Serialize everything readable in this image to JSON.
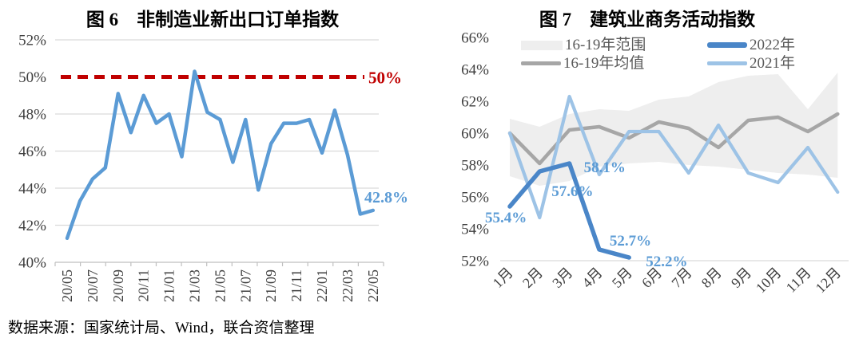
{
  "page": {
    "source_note": "数据来源：国家统计局、Wind，联合资信整理"
  },
  "colors": {
    "red": "#c00000",
    "blue": "#5b9bd5",
    "label_blue": "#5b9bd5",
    "dark_blue": "#4a86c8",
    "light_blue": "#9dc3e6",
    "gray": "#a6a6a6",
    "band": "#eeeeee",
    "grid": "#d9d9d9",
    "axis": "#bfbfbf",
    "axis_text": "#3f3f3f"
  },
  "chart_data": [
    {
      "type": "line",
      "title": "图 6　非制造业新出口订单指数",
      "ylim": [
        40,
        52
      ],
      "ytick_step": 2,
      "yticks": [
        "40%",
        "42%",
        "44%",
        "46%",
        "48%",
        "50%",
        "52%"
      ],
      "x_tick_labels": [
        "20/05",
        "20/07",
        "20/09",
        "20/11",
        "21/01",
        "21/03",
        "21/05",
        "21/07",
        "21/09",
        "21/11",
        "22/01",
        "22/03",
        "22/05"
      ],
      "x_frequency": "monthly, labels every 2 months",
      "grid": true,
      "series": [
        {
          "name": "非制造业新出口订单指数",
          "color_key": "blue",
          "values": [
            41.3,
            43.3,
            44.5,
            45.1,
            49.1,
            47.0,
            49.0,
            47.5,
            48.0,
            45.7,
            50.3,
            48.1,
            47.7,
            45.4,
            47.7,
            43.9,
            46.4,
            47.5,
            47.5,
            47.7,
            45.9,
            48.2,
            45.8,
            42.6,
            42.8
          ]
        }
      ],
      "reference_line": {
        "value": 50,
        "label": "50%",
        "style": "dashed",
        "color_key": "red"
      },
      "end_label": "42.8%"
    },
    {
      "type": "line",
      "title": "图 7　建筑业商务活动指数",
      "ylim": [
        52,
        66
      ],
      "ytick_step": 2,
      "yticks": [
        "52%",
        "54%",
        "56%",
        "58%",
        "60%",
        "62%",
        "64%",
        "66%"
      ],
      "categories": [
        "1月",
        "2月",
        "3月",
        "4月",
        "5月",
        "6月",
        "7月",
        "8月",
        "9月",
        "10月",
        "11月",
        "12月"
      ],
      "grid": false,
      "band": {
        "name": "16-19年范围",
        "color_key": "band",
        "upper": [
          60.9,
          60.4,
          61.2,
          61.5,
          61.4,
          62.1,
          62.3,
          63.2,
          63.6,
          63.7,
          61.5,
          63.8
        ],
        "lower": [
          57.3,
          56.7,
          57.0,
          57.9,
          58.1,
          58.2,
          58.0,
          57.9,
          57.7,
          57.5,
          57.4,
          57.2
        ]
      },
      "series": [
        {
          "name": "16-19年均值",
          "color_key": "gray",
          "values": [
            60.0,
            58.1,
            60.2,
            60.4,
            59.7,
            60.7,
            60.3,
            59.1,
            60.8,
            61.0,
            60.1,
            61.2
          ]
        },
        {
          "name": "2021年",
          "color_key": "light_blue",
          "values": [
            60.0,
            54.7,
            62.3,
            57.4,
            60.1,
            60.1,
            57.5,
            60.5,
            57.5,
            56.9,
            59.1,
            56.3
          ]
        },
        {
          "name": "2022年",
          "color_key": "dark_blue",
          "values": [
            55.4,
            57.6,
            58.1,
            52.7,
            52.2
          ],
          "point_labels": [
            "55.4%",
            "57.6%",
            "58.1%",
            "52.7%",
            "52.2%"
          ]
        }
      ],
      "legend_items": [
        {
          "label": "16-19年范围",
          "swatch": "band"
        },
        {
          "label": "2022年",
          "swatch": "dark_blue"
        },
        {
          "label": "16-19年均值",
          "swatch": "gray"
        },
        {
          "label": "2021年",
          "swatch": "light_blue"
        }
      ],
      "legend_position": "top"
    }
  ]
}
